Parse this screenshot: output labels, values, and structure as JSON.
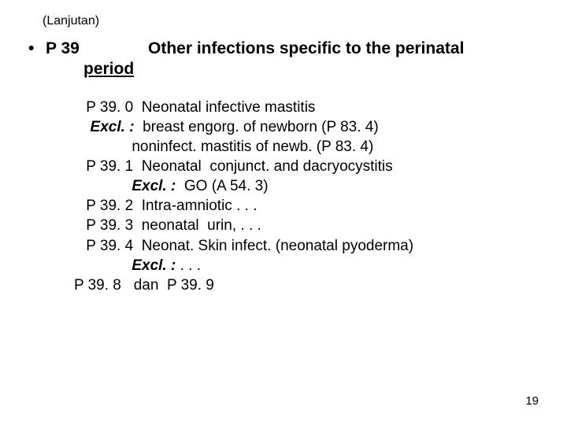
{
  "continuation": "(Lanjutan)",
  "heading": {
    "bullet": "•",
    "code": "P 39",
    "title_line1": "Other infections specific to the perinatal",
    "title_line2": "period"
  },
  "lines": [
    {
      "text": "P 39. 0  Neonatal infective mastitis",
      "indent": 0
    },
    {
      "prefix": "Excl. :",
      "rest": "  breast engorg. of newborn (P 83. 4)",
      "indent": 1,
      "prefix_bi": true
    },
    {
      "text": "noninfect. mastitis of newb. (P 83. 4)",
      "indent": 3
    },
    {
      "text": "P 39. 1  Neonatal  conjunct. and dacryocystitis",
      "indent": 0
    },
    {
      "prefix": "Excl. :",
      "rest": "  GO (A 54. 3)",
      "indent": 3,
      "prefix_bi": true
    },
    {
      "text": "P 39. 2  Intra-amniotic . . .",
      "indent": 0
    },
    {
      "text": "P 39. 3  neonatal  urin, . . .",
      "indent": 0
    },
    {
      "text": "P 39. 4  Neonat. Skin infect. (neonatal pyoderma)",
      "indent": 0
    },
    {
      "prefix": "Excl. :",
      "rest": " . . .",
      "indent": 3,
      "prefix_bi": true
    },
    {
      "text": "P 39. 8   dan  P 39. 9",
      "indent": -1
    }
  ],
  "page_number": "19",
  "style": {
    "bg": "#ffffff",
    "text_color": "#000000",
    "heading_fontsize": 21,
    "body_fontsize": 19,
    "continuation_fontsize": 16
  }
}
